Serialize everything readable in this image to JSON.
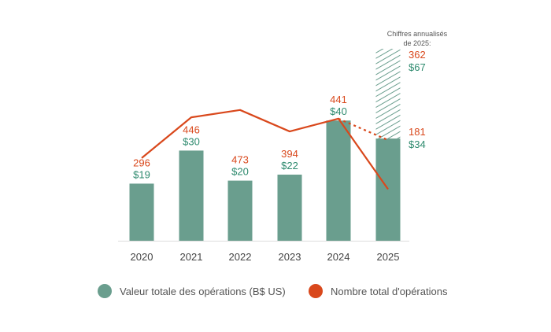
{
  "chart_data": {
    "type": "bar+line",
    "categories": [
      "2020",
      "2021",
      "2022",
      "2023",
      "2024",
      "2025"
    ],
    "series": [
      {
        "name": "Valeur totale des opérations (B$ US)",
        "type": "bar",
        "values": [
          19,
          30,
          20,
          22,
          40,
          34
        ],
        "labels": [
          "$19",
          "$30",
          "$20",
          "$22",
          "$40",
          "$34"
        ],
        "color": "#6a9e8e"
      },
      {
        "name": "Nombre total d'opérations",
        "type": "line",
        "values": [
          296,
          446,
          473,
          394,
          441,
          181
        ],
        "labels": [
          "296",
          "446",
          "473",
          "394",
          "441",
          "181"
        ],
        "color": "#d9481c"
      }
    ],
    "annualized": {
      "note": "Chiffres annualisés de 2025:",
      "note_line1": "Chiffres annualisés",
      "note_line2": "de 2025:",
      "bar_value": 67,
      "bar_label": "$67",
      "line_value": 362,
      "line_label": "362"
    },
    "bar_label_color": "#2e8a6e",
    "grid": false,
    "legend_position": "bottom"
  }
}
